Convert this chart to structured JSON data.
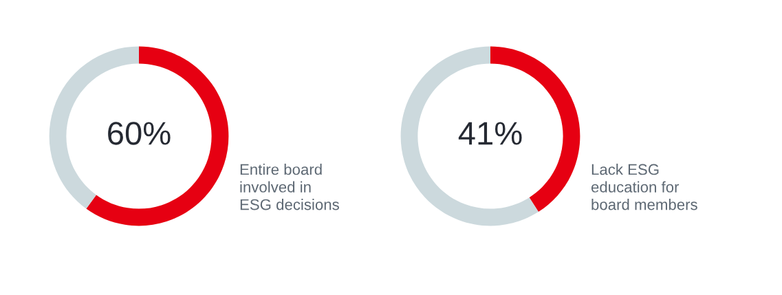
{
  "chart_data": [
    {
      "type": "donut",
      "categories": [
        null,
        null
      ],
      "values": [
        60,
        40
      ],
      "colors": [
        "#e60012",
        "#ccd9dd"
      ],
      "value_labels": [
        "60%",
        null
      ],
      "annotations": [
        "Entire board\ninvolved in\nESG decisions"
      ]
    },
    {
      "type": "donut",
      "categories": [
        null,
        null
      ],
      "values": [
        41,
        59
      ],
      "colors": [
        "#e60012",
        "#ccd9dd"
      ],
      "value_labels": [
        "41%",
        null
      ],
      "annotations": [
        "Lack ESG\neducation for\nboard members"
      ]
    }
  ]
}
